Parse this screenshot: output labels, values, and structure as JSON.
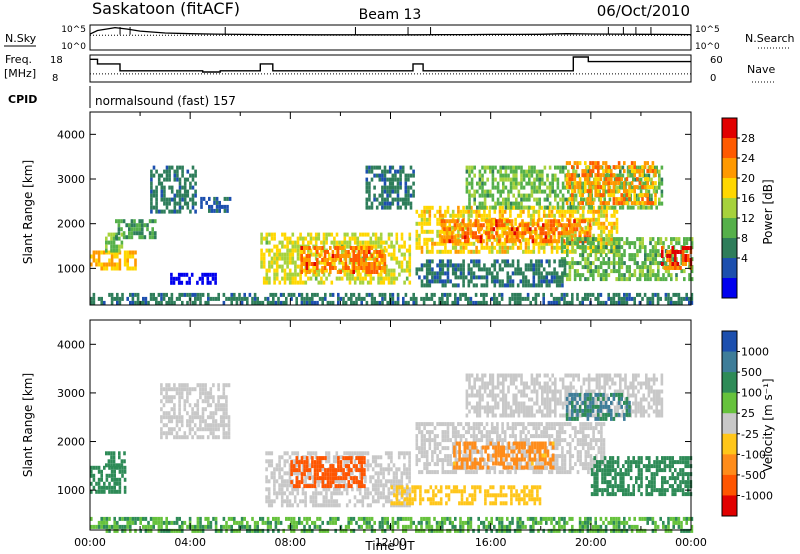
{
  "header": {
    "site": "Saskatoon (fitACF)",
    "beam": "Beam 13",
    "date": "06/Oct/2010"
  },
  "noise_panel": {
    "left_label": "N.Sky",
    "left_ticks": [
      "10^5",
      "10^0"
    ],
    "right_label": "N.Search",
    "right_ticks": [
      "10^5",
      "10^0"
    ],
    "series": [
      {
        "name": "N.Sky",
        "style": "solid"
      },
      {
        "name": "N.Search",
        "style": "dotted"
      }
    ]
  },
  "freq_panel": {
    "left_label_1": "Freq.",
    "left_label_2": "[MHz]",
    "left_ticks": [
      "18",
      "8"
    ],
    "right_label": "Nave",
    "right_ticks": [
      "60",
      "0"
    ]
  },
  "cpid": {
    "label": "CPID",
    "text": "normalsound (fast) 157"
  },
  "chart_data": [
    {
      "type": "line",
      "name": "noise",
      "yscale": "log",
      "ylim": [
        1,
        100000
      ],
      "x": [
        0,
        0.3,
        0.8,
        1.0,
        1.5,
        2.0,
        3,
        4,
        5,
        6,
        7,
        8,
        9,
        10,
        11,
        12,
        13,
        14,
        15,
        16,
        17,
        18,
        19,
        20,
        21,
        22,
        23,
        24
      ],
      "series": [
        {
          "name": "N.Sky",
          "values": [
            1500,
            8000,
            20000,
            30000,
            15000,
            6000,
            2500,
            1800,
            1500,
            1300,
            1200,
            1200,
            1100,
            1100,
            1100,
            1100,
            1100,
            1200,
            1200,
            1300,
            1300,
            1400,
            1800,
            1600,
            1500,
            1400,
            1300,
            1200
          ]
        },
        {
          "name": "N.Search",
          "values": [
            900,
            900,
            900,
            900,
            900,
            900,
            900,
            900,
            900,
            900,
            900,
            900,
            900,
            900,
            900,
            900,
            900,
            900,
            900,
            900,
            900,
            900,
            900,
            900,
            900,
            900,
            900,
            900
          ]
        }
      ],
      "spikes_x": [
        1.2,
        1.6,
        5.4,
        10.6,
        12.7,
        13.6,
        20.7,
        21.3,
        21.8,
        22.4
      ]
    },
    {
      "type": "line",
      "name": "frequency",
      "ylim": [
        8,
        18
      ],
      "y2lim": [
        0,
        60
      ],
      "series": [
        {
          "name": "Freq",
          "steps": [
            [
              0,
              0.3,
              17
            ],
            [
              0.3,
              1.2,
              15
            ],
            [
              1.2,
              4.5,
              12
            ],
            [
              4.5,
              5.2,
              11.5
            ],
            [
              5.2,
              6.8,
              12
            ],
            [
              6.8,
              7.3,
              15
            ],
            [
              7.3,
              12.9,
              12
            ],
            [
              12.9,
              13.3,
              15
            ],
            [
              13.3,
              19.3,
              12
            ],
            [
              19.3,
              19.9,
              18
            ],
            [
              19.9,
              24,
              16
            ]
          ]
        },
        {
          "name": "Nave",
          "values_const": 16
        }
      ]
    },
    {
      "type": "heatmap",
      "name": "power",
      "xlabel": "",
      "ylabel": "Slant Range [km]",
      "xlim": [
        0,
        24
      ],
      "ylim": [
        180,
        4500
      ],
      "yticks": [
        1000,
        2000,
        3000,
        4000
      ],
      "colorbar": {
        "label": "Power [dB]",
        "ticks": [
          "28",
          "24",
          "20",
          "16",
          "12",
          "8",
          "4"
        ],
        "colors": [
          "#e10000",
          "#ff5a00",
          "#ff9900",
          "#ffd700",
          "#a6d23c",
          "#55b04a",
          "#2e7d5a",
          "#1c4fae",
          "#0000ee"
        ]
      },
      "regions": [
        {
          "x": [
            0.0,
            1.8
          ],
          "y": [
            1000,
            1400
          ],
          "v": 22
        },
        {
          "x": [
            0.6,
            1.4
          ],
          "y": [
            1400,
            1800
          ],
          "v": 14
        },
        {
          "x": [
            1.0,
            2.6
          ],
          "y": [
            1700,
            2100
          ],
          "v": 12
        },
        {
          "x": [
            2.4,
            4.2
          ],
          "y": [
            2300,
            3300
          ],
          "v": 10
        },
        {
          "x": [
            4.4,
            5.6
          ],
          "y": [
            2300,
            2600
          ],
          "v": 8
        },
        {
          "x": [
            3.2,
            5.0
          ],
          "y": [
            700,
            900
          ],
          "v": 4
        },
        {
          "x": [
            6.8,
            12.8
          ],
          "y": [
            700,
            1800
          ],
          "v": 18
        },
        {
          "x": [
            8.4,
            11.8
          ],
          "y": [
            950,
            1500
          ],
          "v": 26
        },
        {
          "x": [
            11.0,
            12.9
          ],
          "y": [
            2400,
            3300
          ],
          "v": 10
        },
        {
          "x": [
            13.0,
            21.0
          ],
          "y": [
            1400,
            2400
          ],
          "v": 20
        },
        {
          "x": [
            14.0,
            20.0
          ],
          "y": [
            1600,
            2100
          ],
          "v": 26
        },
        {
          "x": [
            15.0,
            22.8
          ],
          "y": [
            2400,
            3300
          ],
          "v": 14
        },
        {
          "x": [
            19.0,
            22.6
          ],
          "y": [
            2500,
            3400
          ],
          "v": 24
        },
        {
          "x": [
            18.8,
            24.0
          ],
          "y": [
            800,
            1700
          ],
          "v": 14
        },
        {
          "x": [
            22.8,
            24.0
          ],
          "y": [
            1000,
            1500
          ],
          "v": 28
        },
        {
          "x": [
            13.0,
            19.0
          ],
          "y": [
            600,
            1200
          ],
          "v": 10
        },
        {
          "x": [
            0.0,
            24.0
          ],
          "y": [
            200,
            450
          ],
          "v": 10
        }
      ]
    },
    {
      "type": "heatmap",
      "name": "velocity",
      "xlabel": "Time UT",
      "ylabel": "Slant Range [km]",
      "xlim": [
        0,
        24
      ],
      "ylim": [
        180,
        4500
      ],
      "yticks": [
        1000,
        2000,
        3000,
        4000
      ],
      "xticks": [
        "00:00",
        "04:00",
        "08:00",
        "12:00",
        "16:00",
        "20:00",
        "00:00"
      ],
      "colorbar": {
        "label": "Velocity [m s⁻¹]",
        "ticks": [
          "1000",
          "500",
          "100",
          "25",
          "-25",
          "-100",
          "-500",
          "-1000"
        ],
        "colors": [
          "#1c4fae",
          "#3e7d99",
          "#2e8b57",
          "#66c23c",
          "#c8c8c8",
          "#ffc61a",
          "#ff8c1a",
          "#ff5500",
          "#e10000"
        ]
      },
      "regions": [
        {
          "x": [
            0.0,
            1.4
          ],
          "y": [
            1000,
            1500
          ],
          "v": 200
        },
        {
          "x": [
            0.6,
            1.4
          ],
          "y": [
            1500,
            1800
          ],
          "v": 80
        },
        {
          "x": [
            2.8,
            5.6
          ],
          "y": [
            2100,
            3200
          ],
          "v": 0
        },
        {
          "x": [
            7.0,
            12.8
          ],
          "y": [
            700,
            1800
          ],
          "v": 0
        },
        {
          "x": [
            8.0,
            11.0
          ],
          "y": [
            1100,
            1700
          ],
          "v": -400
        },
        {
          "x": [
            13.0,
            20.5
          ],
          "y": [
            1400,
            2400
          ],
          "v": 0
        },
        {
          "x": [
            14.5,
            18.5
          ],
          "y": [
            1500,
            2000
          ],
          "v": -120
        },
        {
          "x": [
            15.0,
            22.8
          ],
          "y": [
            2500,
            3400
          ],
          "v": 0
        },
        {
          "x": [
            19.0,
            21.5
          ],
          "y": [
            2500,
            3000
          ],
          "v": 300
        },
        {
          "x": [
            20.0,
            24.0
          ],
          "y": [
            900,
            1700
          ],
          "v": 150
        },
        {
          "x": [
            12.0,
            18.0
          ],
          "y": [
            700,
            1100
          ],
          "v": -60
        },
        {
          "x": [
            0.0,
            24.0
          ],
          "y": [
            200,
            450
          ],
          "v": 60
        }
      ]
    }
  ]
}
